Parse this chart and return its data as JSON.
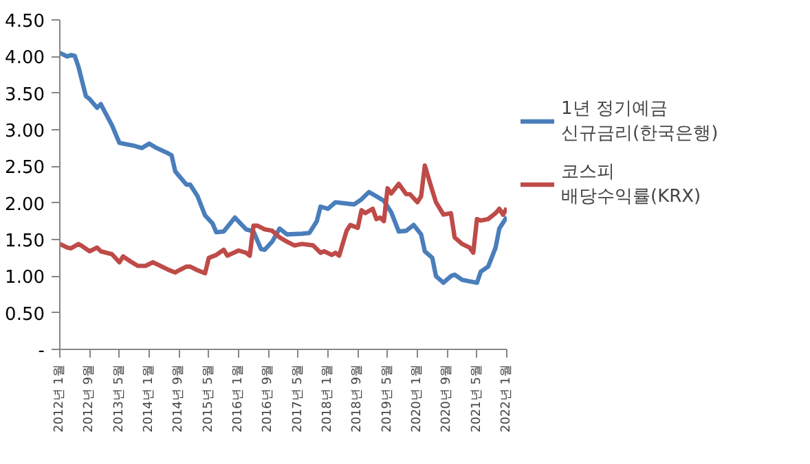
{
  "chart_data": {
    "type": "line",
    "xlim": [
      "2012-01",
      "2022-01"
    ],
    "xticks": [
      {
        "value": "2012-01",
        "label": "2012년 1월"
      },
      {
        "value": "2012-09",
        "label": "2012년 9월"
      },
      {
        "value": "2013-05",
        "label": "2013년 5월"
      },
      {
        "value": "2014-01",
        "label": "2014년 1월"
      },
      {
        "value": "2014-09",
        "label": "2014년 9월"
      },
      {
        "value": "2015-05",
        "label": "2015년 5월"
      },
      {
        "value": "2016-01",
        "label": "2016년 1월"
      },
      {
        "value": "2016-09",
        "label": "2016년 9월"
      },
      {
        "value": "2017-05",
        "label": "2017년 5월"
      },
      {
        "value": "2018-01",
        "label": "2018년 1월"
      },
      {
        "value": "2018-09",
        "label": "2018년 9월"
      },
      {
        "value": "2019-05",
        "label": "2019년 5월"
      },
      {
        "value": "2020-01",
        "label": "2020년 1월"
      },
      {
        "value": "2020-09",
        "label": "2020년 9월"
      },
      {
        "value": "2021-05",
        "label": "2021년 5월"
      },
      {
        "value": "2022-01",
        "label": "2022년 1월"
      }
    ],
    "ylim": [
      0,
      4.5
    ],
    "yticks": [
      {
        "value": 0,
        "label": "-"
      },
      {
        "value": 0.5,
        "label": "0.50"
      },
      {
        "value": 1,
        "label": "1.00"
      },
      {
        "value": 1.5,
        "label": "1.50"
      },
      {
        "value": 2,
        "label": "2.00"
      },
      {
        "value": 2.5,
        "label": "2.50"
      },
      {
        "value": 3,
        "label": "3.00"
      },
      {
        "value": 3.5,
        "label": "3.50"
      },
      {
        "value": 4,
        "label": "4.00"
      },
      {
        "value": 4.5,
        "label": "4.50"
      }
    ],
    "legend": "right",
    "line_style": "solid",
    "series": [
      {
        "name": "1년 정기예금 신규금리(한국은행)",
        "color": "#4a7ebb",
        "x": [
          "2012-01",
          "2012-03",
          "2012-04",
          "2012-05",
          "2012-06",
          "2012-08",
          "2012-09",
          "2012-11",
          "2012-12",
          "2013-03",
          "2013-05",
          "2013-07",
          "2013-09",
          "2013-11",
          "2014-01",
          "2014-03",
          "2014-06",
          "2014-07",
          "2014-08",
          "2014-11",
          "2014-12",
          "2015-02",
          "2015-04",
          "2015-06",
          "2015-07",
          "2015-09",
          "2015-12",
          "2016-03",
          "2016-05",
          "2016-07",
          "2016-08",
          "2016-10",
          "2016-12",
          "2017-02",
          "2017-06",
          "2017-08",
          "2017-10",
          "2017-11",
          "2018-01",
          "2018-03",
          "2018-08",
          "2018-10",
          "2018-12",
          "2019-02",
          "2019-04",
          "2019-06",
          "2019-08",
          "2019-10",
          "2019-12",
          "2020-02",
          "2020-03",
          "2020-05",
          "2020-06",
          "2020-08",
          "2020-10",
          "2020-11",
          "2021-01",
          "2021-03",
          "2021-05",
          "2021-06",
          "2021-08",
          "2021-10",
          "2021-11",
          "2022-01"
        ],
        "values": [
          4.05,
          4.0,
          4.02,
          4.01,
          3.86,
          3.46,
          3.42,
          3.3,
          3.35,
          3.06,
          2.82,
          2.8,
          2.78,
          2.75,
          2.81,
          2.75,
          2.68,
          2.65,
          2.43,
          2.25,
          2.25,
          2.09,
          1.83,
          1.72,
          1.6,
          1.61,
          1.8,
          1.64,
          1.61,
          1.37,
          1.36,
          1.47,
          1.65,
          1.57,
          1.58,
          1.59,
          1.75,
          1.95,
          1.92,
          2.01,
          1.98,
          2.05,
          2.15,
          2.09,
          2.03,
          1.87,
          1.61,
          1.62,
          1.7,
          1.57,
          1.34,
          1.25,
          1.0,
          0.91,
          1.0,
          1.02,
          0.95,
          0.93,
          0.91,
          1.06,
          1.13,
          1.39,
          1.65,
          1.81
        ]
      },
      {
        "name": "코스피 배당수익률(KRX)",
        "color": "#be4b48",
        "x": [
          "2012-01",
          "2012-03",
          "2012-04",
          "2012-06",
          "2012-07",
          "2012-09",
          "2012-11",
          "2012-12",
          "2013-03",
          "2013-05",
          "2013-06",
          "2013-08",
          "2013-10",
          "2013-12",
          "2014-02",
          "2014-04",
          "2014-06",
          "2014-08",
          "2014-09",
          "2014-11",
          "2014-12",
          "2015-02",
          "2015-04",
          "2015-05",
          "2015-07",
          "2015-09",
          "2015-10",
          "2016-01",
          "2016-03",
          "2016-04",
          "2016-05",
          "2016-06",
          "2016-08",
          "2016-10",
          "2016-12",
          "2017-02",
          "2017-04",
          "2017-06",
          "2017-09",
          "2017-11",
          "2017-12",
          "2018-02",
          "2018-03",
          "2018-04",
          "2018-06",
          "2018-07",
          "2018-09",
          "2018-10",
          "2018-11",
          "2019-01",
          "2019-02",
          "2019-03",
          "2019-04",
          "2019-05",
          "2019-06",
          "2019-08",
          "2019-10",
          "2019-11",
          "2020-01",
          "2020-02",
          "2020-03",
          "2020-05",
          "2020-06",
          "2020-08",
          "2020-10",
          "2020-11",
          "2021-01",
          "2021-03",
          "2021-04",
          "2021-05",
          "2021-06",
          "2021-08",
          "2021-10",
          "2021-11",
          "2021-12",
          "2022-01"
        ],
        "values": [
          1.44,
          1.39,
          1.38,
          1.44,
          1.41,
          1.34,
          1.39,
          1.34,
          1.3,
          1.19,
          1.27,
          1.2,
          1.14,
          1.14,
          1.19,
          1.14,
          1.09,
          1.05,
          1.08,
          1.13,
          1.13,
          1.08,
          1.04,
          1.25,
          1.29,
          1.36,
          1.28,
          1.35,
          1.32,
          1.28,
          1.69,
          1.69,
          1.64,
          1.62,
          1.53,
          1.47,
          1.42,
          1.44,
          1.42,
          1.32,
          1.34,
          1.29,
          1.32,
          1.28,
          1.62,
          1.7,
          1.66,
          1.9,
          1.86,
          1.92,
          1.78,
          1.8,
          1.75,
          2.2,
          2.13,
          2.26,
          2.12,
          2.12,
          2.01,
          2.09,
          2.51,
          2.17,
          2.01,
          1.84,
          1.86,
          1.53,
          1.44,
          1.39,
          1.32,
          1.78,
          1.76,
          1.78,
          1.86,
          1.92,
          1.84,
          1.93
        ]
      }
    ]
  }
}
